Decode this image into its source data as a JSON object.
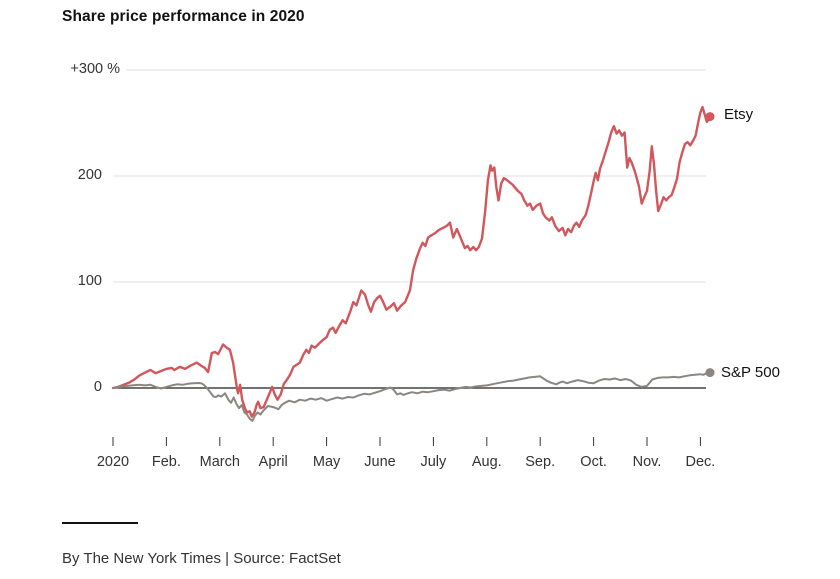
{
  "title": "Share price performance in 2020",
  "byline": "By The New York Times | Source: FactSet",
  "chart_data": {
    "type": "line",
    "title": "Share price performance in 2020",
    "unit": "percent change year-to-date",
    "grid": true,
    "legend_position": "line-end-labels-right",
    "x_axis": {
      "months": [
        "2020",
        "Feb.",
        "March",
        "April",
        "May",
        "June",
        "July",
        "Aug.",
        "Sep.",
        "Oct.",
        "Nov.",
        "Dec."
      ]
    },
    "y_axis": {
      "ticks": [
        0,
        100,
        200,
        300
      ],
      "tick_labels": [
        "0",
        "100",
        "200",
        "+300 %"
      ],
      "range": [
        -40,
        310
      ]
    },
    "baseline": 0,
    "colors": {
      "etsy": "#d1575c",
      "sp500": "#8b8680",
      "gridline": "#e2e2e2",
      "zero_line": "#444444",
      "axis_text": "#333333"
    },
    "series": [
      {
        "name": "Etsy",
        "color": "#d1575c",
        "end_value": 256,
        "points": [
          [
            0,
            0
          ],
          [
            0.1,
            1
          ],
          [
            0.2,
            3
          ],
          [
            0.3,
            5
          ],
          [
            0.4,
            8
          ],
          [
            0.5,
            12
          ],
          [
            0.62,
            15
          ],
          [
            0.7,
            17
          ],
          [
            0.8,
            14
          ],
          [
            0.9,
            16
          ],
          [
            1.0,
            18
          ],
          [
            1.1,
            19
          ],
          [
            1.15,
            17
          ],
          [
            1.25,
            20
          ],
          [
            1.35,
            18
          ],
          [
            1.45,
            21
          ],
          [
            1.57,
            24
          ],
          [
            1.65,
            21
          ],
          [
            1.72,
            19
          ],
          [
            1.78,
            15
          ],
          [
            1.85,
            33
          ],
          [
            1.91,
            34
          ],
          [
            1.97,
            32
          ],
          [
            2.06,
            41
          ],
          [
            2.13,
            38
          ],
          [
            2.19,
            36
          ],
          [
            2.25,
            24
          ],
          [
            2.32,
            0
          ],
          [
            2.34,
            -5
          ],
          [
            2.38,
            3
          ],
          [
            2.42,
            -11
          ],
          [
            2.47,
            -19
          ],
          [
            2.51,
            -23
          ],
          [
            2.56,
            -22
          ],
          [
            2.6,
            -27
          ],
          [
            2.65,
            -23
          ],
          [
            2.69,
            -16
          ],
          [
            2.72,
            -13
          ],
          [
            2.76,
            -19
          ],
          [
            2.82,
            -18
          ],
          [
            2.88,
            -11
          ],
          [
            2.94,
            -4
          ],
          [
            2.98,
            1
          ],
          [
            3.03,
            -6
          ],
          [
            3.08,
            -11
          ],
          [
            3.14,
            -6
          ],
          [
            3.2,
            4
          ],
          [
            3.26,
            8
          ],
          [
            3.32,
            13
          ],
          [
            3.38,
            20
          ],
          [
            3.44,
            22
          ],
          [
            3.5,
            24
          ],
          [
            3.56,
            31
          ],
          [
            3.62,
            36
          ],
          [
            3.67,
            33
          ],
          [
            3.72,
            40
          ],
          [
            3.78,
            38
          ],
          [
            3.84,
            41
          ],
          [
            3.9,
            44
          ],
          [
            3.95,
            46
          ],
          [
            4.0,
            48
          ],
          [
            4.06,
            55
          ],
          [
            4.12,
            57
          ],
          [
            4.17,
            52
          ],
          [
            4.23,
            58
          ],
          [
            4.3,
            64
          ],
          [
            4.36,
            61
          ],
          [
            4.45,
            73
          ],
          [
            4.5,
            81
          ],
          [
            4.56,
            78
          ],
          [
            4.65,
            92
          ],
          [
            4.72,
            88
          ],
          [
            4.78,
            78
          ],
          [
            4.83,
            72
          ],
          [
            4.89,
            81
          ],
          [
            4.95,
            85
          ],
          [
            5.0,
            87
          ],
          [
            5.06,
            81
          ],
          [
            5.12,
            74
          ],
          [
            5.2,
            77
          ],
          [
            5.26,
            80
          ],
          [
            5.32,
            73
          ],
          [
            5.4,
            78
          ],
          [
            5.47,
            81
          ],
          [
            5.56,
            92
          ],
          [
            5.62,
            111
          ],
          [
            5.68,
            122
          ],
          [
            5.75,
            132
          ],
          [
            5.8,
            137
          ],
          [
            5.85,
            134
          ],
          [
            5.9,
            142
          ],
          [
            5.96,
            144
          ],
          [
            6.03,
            146
          ],
          [
            6.1,
            149
          ],
          [
            6.18,
            151
          ],
          [
            6.25,
            153
          ],
          [
            6.31,
            156
          ],
          [
            6.37,
            142
          ],
          [
            6.44,
            150
          ],
          [
            6.5,
            143
          ],
          [
            6.54,
            138
          ],
          [
            6.59,
            132
          ],
          [
            6.64,
            134
          ],
          [
            6.69,
            130
          ],
          [
            6.75,
            133
          ],
          [
            6.8,
            130
          ],
          [
            6.85,
            133
          ],
          [
            6.91,
            141
          ],
          [
            6.97,
            167
          ],
          [
            7.02,
            196
          ],
          [
            7.07,
            210
          ],
          [
            7.1,
            205
          ],
          [
            7.14,
            208
          ],
          [
            7.18,
            189
          ],
          [
            7.22,
            177
          ],
          [
            7.27,
            193
          ],
          [
            7.32,
            198
          ],
          [
            7.38,
            196
          ],
          [
            7.43,
            194
          ],
          [
            7.48,
            192
          ],
          [
            7.53,
            189
          ],
          [
            7.58,
            186
          ],
          [
            7.65,
            183
          ],
          [
            7.7,
            177
          ],
          [
            7.76,
            172
          ],
          [
            7.81,
            174
          ],
          [
            7.86,
            168
          ],
          [
            7.93,
            172
          ],
          [
            8.0,
            174
          ],
          [
            8.05,
            165
          ],
          [
            8.1,
            161
          ],
          [
            8.17,
            158
          ],
          [
            8.22,
            161
          ],
          [
            8.28,
            153
          ],
          [
            8.35,
            148
          ],
          [
            8.42,
            151
          ],
          [
            8.47,
            144
          ],
          [
            8.52,
            150
          ],
          [
            8.58,
            147
          ],
          [
            8.63,
            153
          ],
          [
            8.68,
            156
          ],
          [
            8.73,
            152
          ],
          [
            8.78,
            158
          ],
          [
            8.85,
            163
          ],
          [
            8.9,
            172
          ],
          [
            8.95,
            183
          ],
          [
            9.0,
            195
          ],
          [
            9.04,
            203
          ],
          [
            9.08,
            196
          ],
          [
            9.12,
            207
          ],
          [
            9.17,
            214
          ],
          [
            9.22,
            222
          ],
          [
            9.28,
            232
          ],
          [
            9.33,
            241
          ],
          [
            9.38,
            247
          ],
          [
            9.43,
            240
          ],
          [
            9.48,
            243
          ],
          [
            9.53,
            238
          ],
          [
            9.58,
            241
          ],
          [
            9.63,
            208
          ],
          [
            9.67,
            217
          ],
          [
            9.72,
            212
          ],
          [
            9.78,
            203
          ],
          [
            9.85,
            190
          ],
          [
            9.9,
            174
          ],
          [
            9.95,
            180
          ],
          [
            10.0,
            186
          ],
          [
            10.05,
            205
          ],
          [
            10.09,
            228
          ],
          [
            10.13,
            212
          ],
          [
            10.17,
            186
          ],
          [
            10.21,
            167
          ],
          [
            10.26,
            173
          ],
          [
            10.31,
            180
          ],
          [
            10.36,
            177
          ],
          [
            10.41,
            180
          ],
          [
            10.46,
            182
          ],
          [
            10.51,
            189
          ],
          [
            10.56,
            197
          ],
          [
            10.61,
            213
          ],
          [
            10.66,
            222
          ],
          [
            10.71,
            230
          ],
          [
            10.76,
            232
          ],
          [
            10.81,
            229
          ],
          [
            10.86,
            233
          ],
          [
            10.91,
            238
          ],
          [
            10.96,
            251
          ],
          [
            11.0,
            260
          ],
          [
            11.04,
            265
          ],
          [
            11.08,
            258
          ],
          [
            11.12,
            251
          ],
          [
            11.15,
            253
          ],
          [
            11.18,
            256
          ]
        ]
      },
      {
        "name": "S&P 500",
        "color": "#8b8680",
        "end_value": 14.5,
        "points": [
          [
            0,
            0
          ],
          [
            0.2,
            1.5
          ],
          [
            0.35,
            2.5
          ],
          [
            0.5,
            3
          ],
          [
            0.6,
            2.5
          ],
          [
            0.7,
            3
          ],
          [
            0.8,
            1
          ],
          [
            0.9,
            -0.5
          ],
          [
            1.0,
            1
          ],
          [
            1.1,
            2.5
          ],
          [
            1.2,
            3.5
          ],
          [
            1.3,
            3
          ],
          [
            1.4,
            4
          ],
          [
            1.5,
            4.5
          ],
          [
            1.6,
            4.7
          ],
          [
            1.65,
            4.5
          ],
          [
            1.7,
            3
          ],
          [
            1.76,
            0
          ],
          [
            1.82,
            -4
          ],
          [
            1.88,
            -8
          ],
          [
            1.93,
            -8.5
          ],
          [
            1.97,
            -7
          ],
          [
            2.03,
            -8
          ],
          [
            2.1,
            -5
          ],
          [
            2.16,
            -11
          ],
          [
            2.21,
            -14
          ],
          [
            2.26,
            -9
          ],
          [
            2.31,
            -15
          ],
          [
            2.36,
            -19
          ],
          [
            2.41,
            -16
          ],
          [
            2.46,
            -23
          ],
          [
            2.51,
            -25
          ],
          [
            2.56,
            -29
          ],
          [
            2.61,
            -31
          ],
          [
            2.66,
            -26
          ],
          [
            2.71,
            -23
          ],
          [
            2.76,
            -25
          ],
          [
            2.82,
            -21
          ],
          [
            2.9,
            -17
          ],
          [
            3.0,
            -18
          ],
          [
            3.1,
            -20
          ],
          [
            3.16,
            -16
          ],
          [
            3.22,
            -14
          ],
          [
            3.3,
            -12
          ],
          [
            3.4,
            -13.5
          ],
          [
            3.5,
            -11
          ],
          [
            3.6,
            -12
          ],
          [
            3.7,
            -10
          ],
          [
            3.8,
            -11
          ],
          [
            3.9,
            -9.5
          ],
          [
            4.0,
            -12
          ],
          [
            4.1,
            -10.5
          ],
          [
            4.2,
            -9
          ],
          [
            4.3,
            -10
          ],
          [
            4.4,
            -8.5
          ],
          [
            4.5,
            -9
          ],
          [
            4.6,
            -7
          ],
          [
            4.7,
            -5.5
          ],
          [
            4.8,
            -6
          ],
          [
            4.9,
            -4.5
          ],
          [
            5.0,
            -3
          ],
          [
            5.1,
            -1
          ],
          [
            5.2,
            0.5
          ],
          [
            5.26,
            -2
          ],
          [
            5.32,
            -6
          ],
          [
            5.38,
            -5
          ],
          [
            5.44,
            -6.5
          ],
          [
            5.52,
            -5
          ],
          [
            5.6,
            -4
          ],
          [
            5.7,
            -5
          ],
          [
            5.8,
            -3.5
          ],
          [
            5.9,
            -4
          ],
          [
            6.0,
            -3
          ],
          [
            6.1,
            -2
          ],
          [
            6.2,
            -1.5
          ],
          [
            6.3,
            -2.5
          ],
          [
            6.4,
            -1
          ],
          [
            6.5,
            0
          ],
          [
            6.6,
            1
          ],
          [
            6.7,
            0.5
          ],
          [
            6.8,
            1.5
          ],
          [
            6.9,
            2
          ],
          [
            7.0,
            2.5
          ],
          [
            7.1,
            3.5
          ],
          [
            7.2,
            4.5
          ],
          [
            7.3,
            5.5
          ],
          [
            7.4,
            6.5
          ],
          [
            7.5,
            7
          ],
          [
            7.6,
            8
          ],
          [
            7.7,
            9
          ],
          [
            7.8,
            10
          ],
          [
            7.9,
            10.5
          ],
          [
            8.0,
            11
          ],
          [
            8.06,
            9
          ],
          [
            8.12,
            7
          ],
          [
            8.2,
            5
          ],
          [
            8.3,
            3.5
          ],
          [
            8.36,
            5
          ],
          [
            8.42,
            6
          ],
          [
            8.5,
            4.5
          ],
          [
            8.6,
            6
          ],
          [
            8.7,
            7.5
          ],
          [
            8.8,
            6.5
          ],
          [
            8.9,
            5
          ],
          [
            9.0,
            4.5
          ],
          [
            9.1,
            7
          ],
          [
            9.2,
            8.5
          ],
          [
            9.3,
            8
          ],
          [
            9.4,
            9
          ],
          [
            9.5,
            7.5
          ],
          [
            9.6,
            8.5
          ],
          [
            9.7,
            7
          ],
          [
            9.8,
            3
          ],
          [
            9.9,
            1
          ],
          [
            10.0,
            2
          ],
          [
            10.1,
            8
          ],
          [
            10.2,
            9.5
          ],
          [
            10.3,
            10
          ],
          [
            10.4,
            10
          ],
          [
            10.5,
            10.5
          ],
          [
            10.6,
            10
          ],
          [
            10.7,
            11
          ],
          [
            10.8,
            12
          ],
          [
            10.9,
            12.5
          ],
          [
            11.0,
            13
          ],
          [
            11.05,
            12.5
          ],
          [
            11.1,
            13.5
          ],
          [
            11.18,
            14.5
          ]
        ]
      }
    ]
  }
}
